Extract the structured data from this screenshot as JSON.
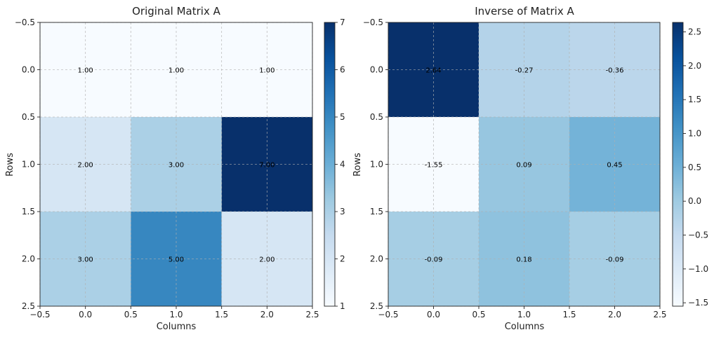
{
  "chart_data": [
    {
      "type": "heatmap",
      "title": "Original Matrix A",
      "xlabel": "Columns",
      "ylabel": "Rows",
      "xlim": [
        -0.5,
        2.5
      ],
      "ylim": [
        2.5,
        -0.5
      ],
      "x_ticks": [
        "−0.5",
        "0.0",
        "0.5",
        "1.0",
        "1.5",
        "2.0",
        "2.5"
      ],
      "y_ticks": [
        "−0.5",
        "0.0",
        "0.5",
        "1.0",
        "1.5",
        "2.0",
        "2.5"
      ],
      "values": [
        [
          1,
          1,
          1
        ],
        [
          2,
          3,
          7
        ],
        [
          3,
          5,
          2
        ]
      ],
      "labels": [
        [
          "1.00",
          "1.00",
          "1.00"
        ],
        [
          "2.00",
          "3.00",
          "7.00"
        ],
        [
          "3.00",
          "5.00",
          "2.00"
        ]
      ],
      "colormap": "Blues",
      "vmin": 1,
      "vmax": 7,
      "colorbar_ticks": [
        "1",
        "2",
        "3",
        "4",
        "5",
        "6",
        "7"
      ],
      "grid": true
    },
    {
      "type": "heatmap",
      "title": "Inverse of Matrix A",
      "xlabel": "Columns",
      "ylabel": "Rows",
      "xlim": [
        -0.5,
        2.5
      ],
      "ylim": [
        2.5,
        -0.5
      ],
      "x_ticks": [
        "−0.5",
        "0.0",
        "0.5",
        "1.0",
        "1.5",
        "2.0",
        "2.5"
      ],
      "y_ticks": [
        "−0.5",
        "0.0",
        "0.5",
        "1.0",
        "1.5",
        "2.0",
        "2.5"
      ],
      "values": [
        [
          2.64,
          -0.27,
          -0.36
        ],
        [
          -1.55,
          0.09,
          0.45
        ],
        [
          -0.09,
          0.18,
          -0.09
        ]
      ],
      "labels": [
        [
          "2.64",
          "-0.27",
          "-0.36"
        ],
        [
          "-1.55",
          "0.09",
          "0.45"
        ],
        [
          "-0.09",
          "0.18",
          "-0.09"
        ]
      ],
      "colormap": "Blues",
      "vmin": -1.55,
      "vmax": 2.64,
      "colorbar_ticks": [
        "−1.5",
        "−1.0",
        "−0.5",
        "0.0",
        "0.5",
        "1.0",
        "1.5",
        "2.0",
        "2.5"
      ],
      "colorbar_tick_values": [
        -1.5,
        -1.0,
        -0.5,
        0.0,
        0.5,
        1.0,
        1.5,
        2.0,
        2.5
      ],
      "grid": true
    }
  ]
}
